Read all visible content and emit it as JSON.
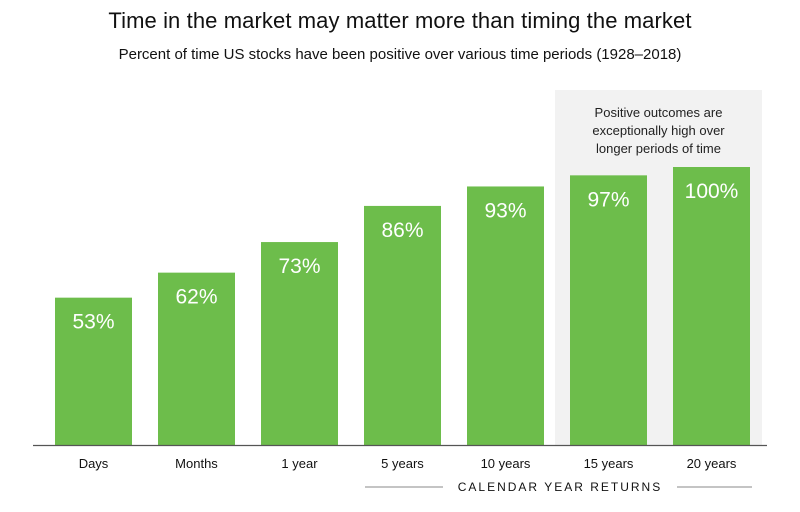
{
  "title": "Time in the market may matter more than timing the market",
  "subtitle": "Percent of time US stocks have been positive over various time periods (1928–2018)",
  "callout": {
    "lines": [
      "Positive outcomes are",
      "exceptionally high over",
      "longer periods of time"
    ]
  },
  "group_label": "CALENDAR YEAR RETURNS",
  "colors": {
    "bar": "#6dbd4b",
    "callout_bg": "#f2f2f2",
    "axis": "#555555",
    "bracket": "#888888"
  },
  "chart_data": {
    "type": "bar",
    "categories": [
      "Days",
      "Months",
      "1 year",
      "5 years",
      "10 years",
      "15 years",
      "20 years"
    ],
    "values": [
      53,
      62,
      73,
      86,
      93,
      97,
      100
    ],
    "value_labels": [
      "53%",
      "62%",
      "73%",
      "86%",
      "93%",
      "97%",
      "100%"
    ],
    "title": "Time in the market may matter more than timing the market",
    "subtitle": "Percent of time US stocks have been positive over various time periods (1928–2018)",
    "ylim": [
      0,
      100
    ],
    "grid": false,
    "legend": "none",
    "highlighted_categories": [
      "15 years",
      "20 years"
    ]
  }
}
